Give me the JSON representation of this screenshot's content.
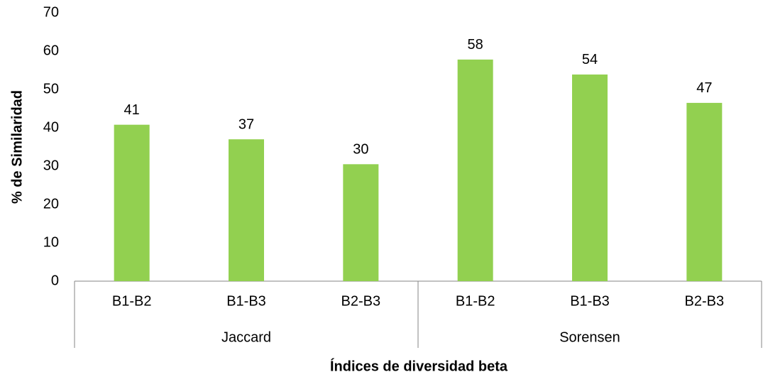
{
  "chart_data": {
    "type": "bar",
    "xlabel": "Índices de diversidad beta",
    "ylabel": "% de Similaridad",
    "categories": [
      "B1-B2",
      "B1-B3",
      "B2-B3",
      "B1-B2",
      "B1-B3",
      "B2-B3"
    ],
    "groups": [
      "Jaccard",
      "Sorensen"
    ],
    "values": [
      40.8,
      37.0,
      30.5,
      57.8,
      53.9,
      46.5
    ],
    "value_labels": [
      "41",
      "37",
      "30",
      "58",
      "54",
      "47"
    ],
    "color": "#92d050",
    "ylim": [
      0,
      70
    ],
    "yticks": [
      0,
      10,
      20,
      30,
      40,
      50,
      60,
      70
    ],
    "grid": false
  }
}
